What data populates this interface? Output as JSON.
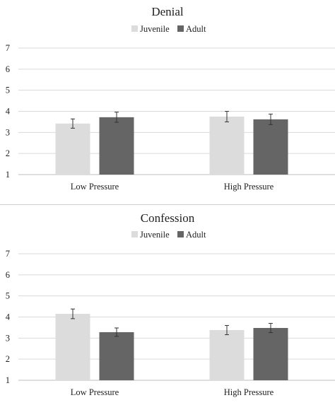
{
  "colors": {
    "juvenile": "#dcdcdc",
    "adult": "#656565",
    "grid": "#d9d9d9",
    "axis": "#bdbdbd",
    "error": "#333333"
  },
  "chart_data": [
    {
      "type": "bar",
      "title": "Denial",
      "categories": [
        "Low Pressure",
        "High Pressure"
      ],
      "series": [
        {
          "name": "Juvenile",
          "values": [
            3.42,
            3.75
          ],
          "errors": [
            0.22,
            0.25
          ]
        },
        {
          "name": "Adult",
          "values": [
            3.72,
            3.62
          ],
          "errors": [
            0.24,
            0.25
          ]
        }
      ],
      "yticks": [
        "1",
        "2",
        "3",
        "4",
        "5",
        "6",
        "7"
      ],
      "ylim": [
        1,
        7
      ],
      "grid": true,
      "legend": "top"
    },
    {
      "type": "bar",
      "title": "Confession",
      "categories": [
        "Low Pressure",
        "High Pressure"
      ],
      "series": [
        {
          "name": "Juvenile",
          "values": [
            4.15,
            3.38
          ],
          "errors": [
            0.23,
            0.22
          ]
        },
        {
          "name": "Adult",
          "values": [
            3.28,
            3.48
          ],
          "errors": [
            0.2,
            0.22
          ]
        }
      ],
      "yticks": [
        "1",
        "2",
        "3",
        "4",
        "5",
        "6",
        "7"
      ],
      "ylim": [
        1,
        7
      ],
      "grid": true,
      "legend": "top"
    }
  ]
}
